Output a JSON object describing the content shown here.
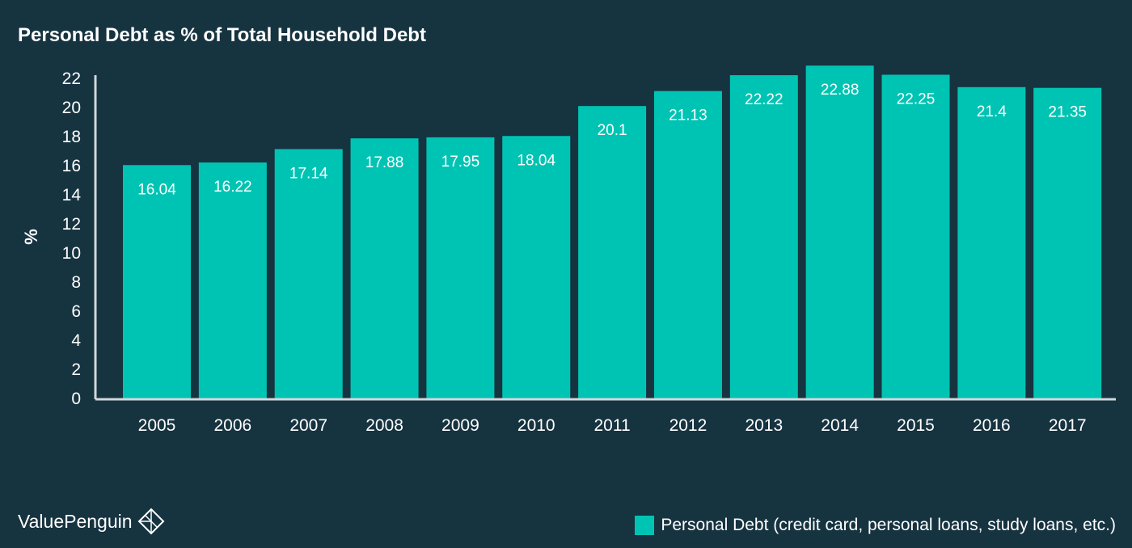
{
  "colors": {
    "background": "#163340",
    "bar": "#00c4b3",
    "text": "#ffffff",
    "axis": "#d0d8dc"
  },
  "brand": {
    "name": "ValuePenguin",
    "icon": "penguin-diamond-icon"
  },
  "chart_data": {
    "type": "bar",
    "title": "Personal Debt as % of Total Household Debt",
    "xlabel": "",
    "ylabel": "%",
    "ylim": [
      0,
      22
    ],
    "yticks": [
      0,
      2,
      4,
      6,
      8,
      10,
      12,
      14,
      16,
      18,
      20,
      22
    ],
    "grid": false,
    "legend_position": "bottom-right",
    "categories": [
      "2005",
      "2006",
      "2007",
      "2008",
      "2009",
      "2010",
      "2011",
      "2012",
      "2013",
      "2014",
      "2015",
      "2016",
      "2017"
    ],
    "series": [
      {
        "name": "Personal Debt (credit card, personal loans, study loans, etc.)",
        "values": [
          16.04,
          16.22,
          17.14,
          17.88,
          17.95,
          18.04,
          20.1,
          21.13,
          22.22,
          22.88,
          22.25,
          21.4,
          21.35
        ]
      }
    ]
  }
}
